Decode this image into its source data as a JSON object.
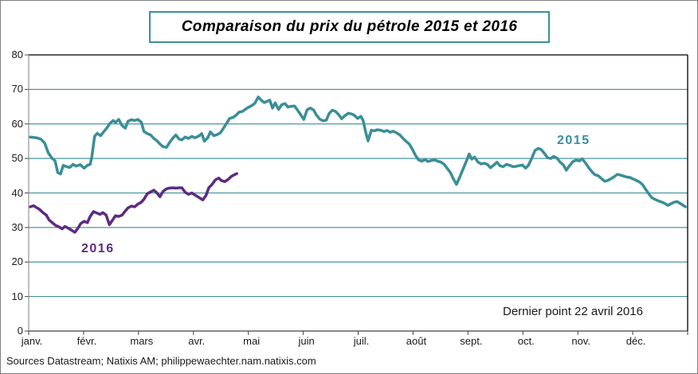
{
  "title": "Comparaison du prix du pétrole 2015 et 2016",
  "annotation": "Dernier point 22 avril 2016",
  "sources": "Sources Datastream; Natixis AM; philippewaechter.nam.natixis.com",
  "colors": {
    "series_2015": "#3A8E97",
    "series_2016": "#5D2B82",
    "gridline": "#4A969E",
    "axis_line": "#7f7f7f",
    "tick": "#404040",
    "frame": "#000000",
    "title_border": "#3D8E99"
  },
  "chart_data": {
    "type": "line",
    "title": "Comparaison du prix du pétrole 2015 et 2016",
    "xlabel": "",
    "ylabel": "",
    "x_axis": {
      "unit": "months (0 = 1 janv.)",
      "range": [
        0,
        12
      ],
      "tick_labels": [
        "janv.",
        "févr.",
        "mars",
        "avr.",
        "mai",
        "juin",
        "juil.",
        "août",
        "sept.",
        "oct.",
        "nov.",
        "déc."
      ],
      "gridlines": false
    },
    "y_axis": {
      "ticks": [
        0,
        10,
        20,
        30,
        40,
        50,
        60,
        70,
        80
      ],
      "range": [
        0,
        80
      ],
      "gridlines": true
    },
    "legend": "inline series labels",
    "series": [
      {
        "name": "2015",
        "color": "#3A8E97",
        "points": [
          [
            0.03,
            56.2
          ],
          [
            0.14,
            56.0
          ],
          [
            0.22,
            55.6
          ],
          [
            0.29,
            54.5
          ],
          [
            0.36,
            51.5
          ],
          [
            0.43,
            50.0
          ],
          [
            0.48,
            49.3
          ],
          [
            0.53,
            45.9
          ],
          [
            0.58,
            45.5
          ],
          [
            0.63,
            48.0
          ],
          [
            0.69,
            47.6
          ],
          [
            0.75,
            47.4
          ],
          [
            0.81,
            48.3
          ],
          [
            0.86,
            47.8
          ],
          [
            0.94,
            48.2
          ],
          [
            1.01,
            47.2
          ],
          [
            1.07,
            48.0
          ],
          [
            1.12,
            48.3
          ],
          [
            1.15,
            50.5
          ],
          [
            1.2,
            56.4
          ],
          [
            1.25,
            57.3
          ],
          [
            1.31,
            56.6
          ],
          [
            1.37,
            57.8
          ],
          [
            1.43,
            59.0
          ],
          [
            1.48,
            60.2
          ],
          [
            1.54,
            61.0
          ],
          [
            1.58,
            60.4
          ],
          [
            1.64,
            61.3
          ],
          [
            1.7,
            59.5
          ],
          [
            1.76,
            58.8
          ],
          [
            1.81,
            60.8
          ],
          [
            1.87,
            61.2
          ],
          [
            1.93,
            61.0
          ],
          [
            1.99,
            61.3
          ],
          [
            2.05,
            60.5
          ],
          [
            2.1,
            57.8
          ],
          [
            2.16,
            57.2
          ],
          [
            2.22,
            56.8
          ],
          [
            2.28,
            55.8
          ],
          [
            2.33,
            55.2
          ],
          [
            2.39,
            54.2
          ],
          [
            2.45,
            53.4
          ],
          [
            2.51,
            53.2
          ],
          [
            2.56,
            54.5
          ],
          [
            2.62,
            55.8
          ],
          [
            2.68,
            56.8
          ],
          [
            2.74,
            55.6
          ],
          [
            2.79,
            55.4
          ],
          [
            2.85,
            56.2
          ],
          [
            2.91,
            55.8
          ],
          [
            2.97,
            56.4
          ],
          [
            3.03,
            56.0
          ],
          [
            3.1,
            56.5
          ],
          [
            3.15,
            57.2
          ],
          [
            3.2,
            55.0
          ],
          [
            3.26,
            56.0
          ],
          [
            3.31,
            57.7
          ],
          [
            3.37,
            56.6
          ],
          [
            3.43,
            56.9
          ],
          [
            3.49,
            57.4
          ],
          [
            3.54,
            58.6
          ],
          [
            3.6,
            60.1
          ],
          [
            3.66,
            61.6
          ],
          [
            3.72,
            61.9
          ],
          [
            3.77,
            62.4
          ],
          [
            3.83,
            63.4
          ],
          [
            3.89,
            63.6
          ],
          [
            3.95,
            64.3
          ],
          [
            4.0,
            64.8
          ],
          [
            4.06,
            65.3
          ],
          [
            4.12,
            66.0
          ],
          [
            4.18,
            67.8
          ],
          [
            4.24,
            66.8
          ],
          [
            4.29,
            66.2
          ],
          [
            4.35,
            66.6
          ],
          [
            4.39,
            66.9
          ],
          [
            4.44,
            64.6
          ],
          [
            4.49,
            66.1
          ],
          [
            4.55,
            64.2
          ],
          [
            4.61,
            65.6
          ],
          [
            4.67,
            65.9
          ],
          [
            4.72,
            64.9
          ],
          [
            4.78,
            65.1
          ],
          [
            4.84,
            65.2
          ],
          [
            4.9,
            63.9
          ],
          [
            4.96,
            62.5
          ],
          [
            5.01,
            61.3
          ],
          [
            5.07,
            64.1
          ],
          [
            5.13,
            64.6
          ],
          [
            5.19,
            64.0
          ],
          [
            5.24,
            62.6
          ],
          [
            5.3,
            61.4
          ],
          [
            5.36,
            60.9
          ],
          [
            5.42,
            61.1
          ],
          [
            5.47,
            63.0
          ],
          [
            5.53,
            64.0
          ],
          [
            5.59,
            63.6
          ],
          [
            5.65,
            62.6
          ],
          [
            5.7,
            61.5
          ],
          [
            5.76,
            62.4
          ],
          [
            5.82,
            63.1
          ],
          [
            5.88,
            62.9
          ],
          [
            5.93,
            62.5
          ],
          [
            5.99,
            61.6
          ],
          [
            6.05,
            62.2
          ],
          [
            6.09,
            61.0
          ],
          [
            6.14,
            57.5
          ],
          [
            6.18,
            55.1
          ],
          [
            6.24,
            58.2
          ],
          [
            6.29,
            58.0
          ],
          [
            6.35,
            58.3
          ],
          [
            6.41,
            58.2
          ],
          [
            6.47,
            57.8
          ],
          [
            6.53,
            58.1
          ],
          [
            6.58,
            57.6
          ],
          [
            6.64,
            57.9
          ],
          [
            6.7,
            57.4
          ],
          [
            6.76,
            56.8
          ],
          [
            6.81,
            55.9
          ],
          [
            6.87,
            55.0
          ],
          [
            6.93,
            54.2
          ],
          [
            6.99,
            52.6
          ],
          [
            7.04,
            51.0
          ],
          [
            7.1,
            49.6
          ],
          [
            7.16,
            49.2
          ],
          [
            7.22,
            49.7
          ],
          [
            7.27,
            49.1
          ],
          [
            7.33,
            49.4
          ],
          [
            7.39,
            49.6
          ],
          [
            7.45,
            49.2
          ],
          [
            7.5,
            49.0
          ],
          [
            7.56,
            48.4
          ],
          [
            7.62,
            47.2
          ],
          [
            7.68,
            45.9
          ],
          [
            7.73,
            44.2
          ],
          [
            7.79,
            42.5
          ],
          [
            7.85,
            44.6
          ],
          [
            7.91,
            46.9
          ],
          [
            7.97,
            49.2
          ],
          [
            8.02,
            51.3
          ],
          [
            8.07,
            49.8
          ],
          [
            8.12,
            50.4
          ],
          [
            8.18,
            49.0
          ],
          [
            8.24,
            48.4
          ],
          [
            8.3,
            48.6
          ],
          [
            8.35,
            48.3
          ],
          [
            8.41,
            47.3
          ],
          [
            8.47,
            48.1
          ],
          [
            8.53,
            48.9
          ],
          [
            8.58,
            47.9
          ],
          [
            8.64,
            47.6
          ],
          [
            8.7,
            48.3
          ],
          [
            8.76,
            48.0
          ],
          [
            8.82,
            47.6
          ],
          [
            8.87,
            47.7
          ],
          [
            8.93,
            47.9
          ],
          [
            8.99,
            48.1
          ],
          [
            9.05,
            47.2
          ],
          [
            9.1,
            48.0
          ],
          [
            9.16,
            50.0
          ],
          [
            9.22,
            52.3
          ],
          [
            9.28,
            52.9
          ],
          [
            9.33,
            52.6
          ],
          [
            9.39,
            51.5
          ],
          [
            9.45,
            50.2
          ],
          [
            9.51,
            50.0
          ],
          [
            9.56,
            50.6
          ],
          [
            9.62,
            50.1
          ],
          [
            9.68,
            48.9
          ],
          [
            9.74,
            48.1
          ],
          [
            9.79,
            46.6
          ],
          [
            9.85,
            47.9
          ],
          [
            9.91,
            49.1
          ],
          [
            9.97,
            49.5
          ],
          [
            10.03,
            49.3
          ],
          [
            10.08,
            49.9
          ],
          [
            10.14,
            48.7
          ],
          [
            10.2,
            47.3
          ],
          [
            10.26,
            46.1
          ],
          [
            10.31,
            45.3
          ],
          [
            10.37,
            45.0
          ],
          [
            10.43,
            44.2
          ],
          [
            10.49,
            43.4
          ],
          [
            10.54,
            43.6
          ],
          [
            10.6,
            44.1
          ],
          [
            10.66,
            44.7
          ],
          [
            10.72,
            45.4
          ],
          [
            10.77,
            45.2
          ],
          [
            10.83,
            44.9
          ],
          [
            10.89,
            44.6
          ],
          [
            10.95,
            44.5
          ],
          [
            11.0,
            44.1
          ],
          [
            11.06,
            43.7
          ],
          [
            11.12,
            43.2
          ],
          [
            11.18,
            42.4
          ],
          [
            11.23,
            41.2
          ],
          [
            11.29,
            39.8
          ],
          [
            11.35,
            38.6
          ],
          [
            11.41,
            38.1
          ],
          [
            11.47,
            37.7
          ],
          [
            11.52,
            37.4
          ],
          [
            11.58,
            37.0
          ],
          [
            11.64,
            36.4
          ],
          [
            11.7,
            36.9
          ],
          [
            11.75,
            37.3
          ],
          [
            11.81,
            37.5
          ],
          [
            11.87,
            36.9
          ],
          [
            11.93,
            36.3
          ],
          [
            11.96,
            36.0
          ]
        ]
      },
      {
        "name": "2016",
        "color": "#5D2B82",
        "points": [
          [
            0.03,
            36.0
          ],
          [
            0.09,
            36.3
          ],
          [
            0.14,
            35.8
          ],
          [
            0.2,
            35.2
          ],
          [
            0.26,
            34.3
          ],
          [
            0.32,
            33.6
          ],
          [
            0.37,
            32.2
          ],
          [
            0.43,
            31.4
          ],
          [
            0.49,
            30.6
          ],
          [
            0.55,
            30.2
          ],
          [
            0.61,
            29.6
          ],
          [
            0.66,
            30.3
          ],
          [
            0.72,
            29.8
          ],
          [
            0.78,
            29.2
          ],
          [
            0.84,
            28.6
          ],
          [
            0.89,
            29.6
          ],
          [
            0.95,
            31.2
          ],
          [
            1.01,
            31.8
          ],
          [
            1.07,
            31.4
          ],
          [
            1.12,
            33.2
          ],
          [
            1.18,
            34.6
          ],
          [
            1.24,
            34.2
          ],
          [
            1.3,
            33.8
          ],
          [
            1.35,
            34.3
          ],
          [
            1.41,
            33.6
          ],
          [
            1.47,
            30.8
          ],
          [
            1.53,
            32.2
          ],
          [
            1.58,
            33.4
          ],
          [
            1.64,
            33.2
          ],
          [
            1.7,
            33.6
          ],
          [
            1.76,
            34.8
          ],
          [
            1.81,
            35.7
          ],
          [
            1.87,
            36.2
          ],
          [
            1.93,
            36.0
          ],
          [
            1.99,
            36.8
          ],
          [
            2.05,
            37.3
          ],
          [
            2.1,
            38.2
          ],
          [
            2.16,
            39.8
          ],
          [
            2.22,
            40.3
          ],
          [
            2.28,
            40.8
          ],
          [
            2.33,
            40.1
          ],
          [
            2.39,
            38.9
          ],
          [
            2.45,
            40.5
          ],
          [
            2.51,
            41.2
          ],
          [
            2.56,
            41.4
          ],
          [
            2.62,
            41.5
          ],
          [
            2.68,
            41.4
          ],
          [
            2.74,
            41.5
          ],
          [
            2.79,
            41.5
          ],
          [
            2.85,
            40.2
          ],
          [
            2.91,
            39.6
          ],
          [
            2.97,
            40.0
          ],
          [
            3.03,
            39.4
          ],
          [
            3.08,
            38.9
          ],
          [
            3.14,
            38.3
          ],
          [
            3.17,
            38.0
          ],
          [
            3.23,
            39.3
          ],
          [
            3.28,
            41.5
          ],
          [
            3.34,
            42.5
          ],
          [
            3.4,
            43.8
          ],
          [
            3.46,
            44.3
          ],
          [
            3.51,
            43.6
          ],
          [
            3.57,
            43.3
          ],
          [
            3.63,
            43.9
          ],
          [
            3.69,
            44.8
          ],
          [
            3.75,
            45.3
          ],
          [
            3.79,
            45.6
          ]
        ]
      }
    ]
  }
}
